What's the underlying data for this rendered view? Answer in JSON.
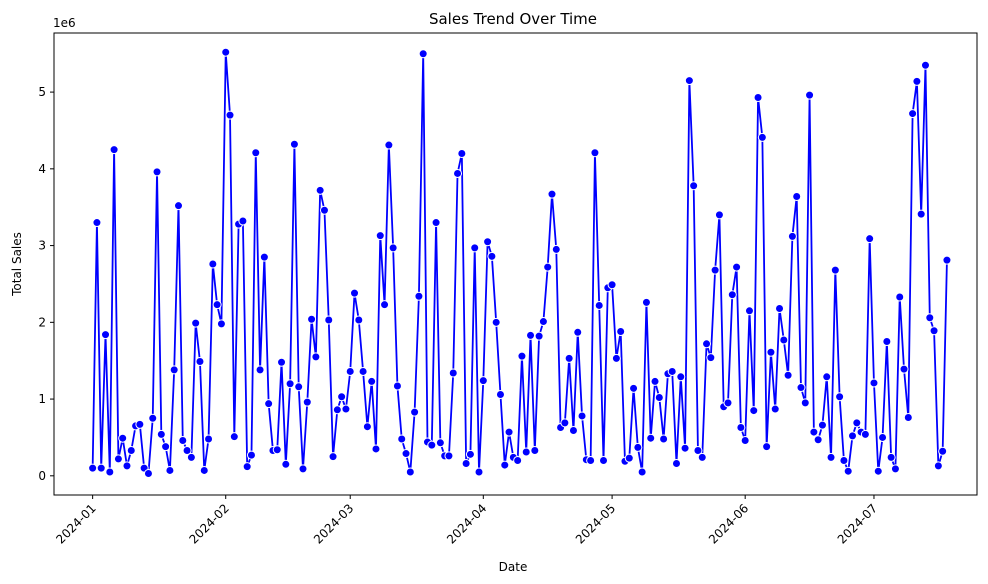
{
  "chart_data": {
    "type": "line",
    "title": "Sales Trend Over Time",
    "xlabel": "Date",
    "ylabel": "Total Sales",
    "y_offset_label": "1e6",
    "y_multiplier": 1000000,
    "ylim": [
      -0.25,
      5.77
    ],
    "xlim": [
      "2023-12-23",
      "2024-07-25"
    ],
    "x_ticks": [
      "2024-01",
      "2024-02",
      "2024-03",
      "2024-04",
      "2024-05",
      "2024-06",
      "2024-07"
    ],
    "x_tick_dates": [
      "2024-01-01",
      "2024-02-01",
      "2024-03-01",
      "2024-04-01",
      "2024-05-01",
      "2024-06-01",
      "2024-07-01"
    ],
    "y_ticks": [
      0,
      1,
      2,
      3,
      4,
      5
    ],
    "y_tick_labels": [
      "0",
      "1",
      "2",
      "3",
      "4",
      "5"
    ],
    "grid": false,
    "line_color": "#0000ff",
    "marker_color": "#0000ff",
    "series": [
      {
        "start_date": "2024-01-01",
        "values": [
          0.1,
          3.3,
          0.1,
          1.84,
          0.05,
          4.25,
          0.22,
          0.49,
          0.13,
          0.33,
          0.65,
          0.67,
          0.1,
          0.03,
          0.75,
          3.96,
          0.54,
          0.38,
          0.07,
          1.38,
          3.52,
          0.46,
          0.33,
          0.24,
          1.99,
          1.49,
          0.07,
          0.48,
          2.76,
          2.23,
          1.98,
          5.52,
          4.7,
          0.51,
          3.28,
          3.32,
          0.12,
          0.27,
          4.21,
          1.38,
          2.85,
          0.94,
          0.33,
          0.34,
          1.48,
          0.15,
          1.2,
          4.32,
          1.16,
          0.09,
          0.96,
          2.04,
          1.55,
          3.72,
          3.46,
          2.03,
          0.25,
          0.86,
          1.03,
          0.87,
          1.36,
          2.38,
          2.03,
          1.36,
          0.64,
          1.23,
          0.35,
          3.13,
          2.23,
          4.31,
          2.97,
          1.17,
          0.48,
          0.29,
          0.05,
          0.83,
          2.34,
          5.5,
          0.44,
          0.4,
          3.3,
          0.43,
          0.26,
          0.26,
          1.34,
          3.94,
          4.2,
          0.16,
          0.28,
          2.97,
          0.05,
          1.24,
          3.05,
          2.86,
          2.0,
          1.06,
          0.14,
          0.57,
          0.24,
          0.2,
          1.56,
          0.31,
          1.83,
          0.33,
          1.82,
          2.01,
          2.72,
          3.67,
          2.95,
          0.63,
          0.69,
          1.53,
          0.59,
          1.87,
          0.78,
          0.21,
          0.2,
          4.21,
          2.22,
          0.2,
          2.45,
          2.49,
          1.53,
          1.88,
          0.19,
          0.23,
          1.14,
          0.37,
          0.05,
          2.26,
          0.49,
          1.23,
          1.02,
          0.48,
          1.33,
          1.36,
          0.16,
          1.29,
          0.36,
          5.15,
          3.78,
          0.33,
          0.24,
          1.72,
          1.54,
          2.68,
          3.4,
          0.9,
          0.95,
          2.36,
          2.72,
          0.63,
          0.46,
          2.15,
          0.85,
          4.93,
          4.41,
          0.38,
          1.61,
          0.87,
          2.18,
          1.77,
          1.31,
          3.12,
          3.64,
          1.15,
          0.95,
          4.96,
          0.57,
          0.47,
          0.66,
          1.29,
          0.24,
          2.68,
          1.03,
          0.2,
          0.06,
          0.52,
          0.69,
          0.57,
          0.54,
          3.09,
          1.21,
          0.06,
          0.5,
          1.75,
          0.24,
          0.09,
          2.33,
          1.39,
          0.76,
          4.72,
          5.14,
          3.41,
          5.35,
          2.06,
          1.89,
          0.13,
          0.32,
          2.81
        ]
      }
    ]
  }
}
